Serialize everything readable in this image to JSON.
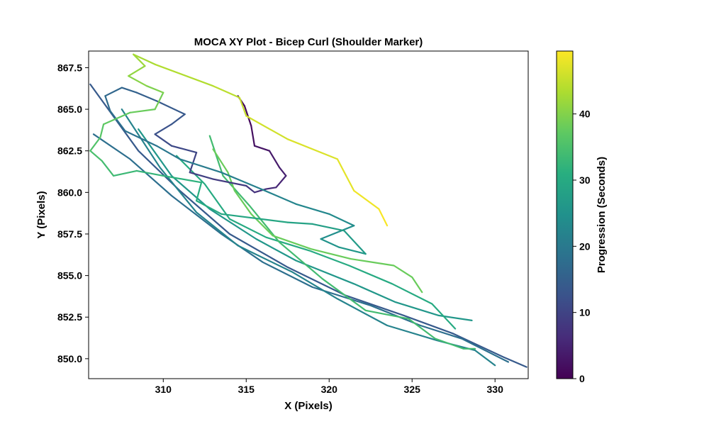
{
  "chart_data": {
    "type": "line",
    "title": "MOCA XY Plot - Bicep Curl (Shoulder Marker)",
    "xlabel": "X (Pixels)",
    "ylabel": "Y (Pixels)",
    "xlim": [
      305.5,
      332.0
    ],
    "ylim": [
      848.8,
      868.5
    ],
    "grid": false,
    "x_ticks": [
      {
        "value": 310,
        "label": "310"
      },
      {
        "value": 315,
        "label": "315"
      },
      {
        "value": 320,
        "label": "320"
      },
      {
        "value": 325,
        "label": "325"
      },
      {
        "value": 330,
        "label": "330"
      }
    ],
    "y_ticks": [
      {
        "value": 850.0,
        "label": "850.0"
      },
      {
        "value": 852.5,
        "label": "852.5"
      },
      {
        "value": 855.0,
        "label": "855.0"
      },
      {
        "value": 857.5,
        "label": "857.5"
      },
      {
        "value": 860.0,
        "label": "860.0"
      },
      {
        "value": 862.5,
        "label": "862.5"
      },
      {
        "value": 865.0,
        "label": "865.0"
      },
      {
        "value": 867.5,
        "label": "867.5"
      }
    ],
    "colorbar": {
      "label": "Progression (Seconds)",
      "range": [
        0,
        49.5
      ],
      "colormap": "viridis",
      "ticks": [
        {
          "value": 0,
          "label": "0"
        },
        {
          "value": 10,
          "label": "10"
        },
        {
          "value": 20,
          "label": "20"
        },
        {
          "value": 30,
          "label": "30"
        },
        {
          "value": 40,
          "label": "40"
        }
      ]
    },
    "trajectory": {
      "color_by": "time",
      "t": [
        0,
        0.8,
        1.6,
        2.4,
        3.2,
        4.0,
        4.8,
        5.6,
        6.4,
        7.2,
        8.0,
        8.8,
        9.6,
        10.4,
        11.2,
        12.0,
        12.8,
        13.6,
        14.4,
        15.2,
        16.0,
        16.8,
        17.6,
        18.4,
        19.2,
        20.0,
        20.8,
        21.6,
        22.4,
        23.2,
        24.0,
        24.8,
        25.6,
        26.4,
        27.2,
        28.0,
        28.8,
        29.6,
        30.4,
        31.2,
        32.0,
        32.8,
        33.6,
        34.4,
        35.2,
        36.0,
        36.8,
        37.6,
        38.4,
        39.2,
        40.0,
        40.8,
        41.6,
        42.4,
        43.2,
        44.0,
        44.8,
        45.6,
        46.4,
        47.2,
        48.0,
        48.8,
        49.5
      ],
      "x": [
        314.5,
        314.9,
        315.3,
        315.5,
        316.4,
        317.0,
        317.4,
        316.8,
        316.2,
        315.5,
        315.0,
        313.0,
        311.6,
        312.0,
        310.5,
        309.5,
        310.5,
        311.3,
        309.6,
        308.4,
        307.5,
        306.5,
        306.8,
        307.7,
        309.6,
        311.0,
        313.5,
        315.9,
        318.0,
        320.0,
        321.5,
        319.5,
        320.6,
        322.2,
        320.9,
        319.0,
        317.5,
        313.5,
        312.0,
        312.3,
        310.0,
        308.4,
        307.0,
        306.3,
        305.6,
        306.2,
        306.4,
        308.0,
        309.5,
        310.0,
        309.0,
        307.9,
        308.9,
        308.2,
        309.5,
        313.0,
        314.6,
        315.0,
        317.5,
        320.5,
        321.5,
        323.0,
        323.5
      ],
      "y": [
        865.8,
        865.2,
        864.0,
        862.8,
        862.5,
        861.5,
        861.0,
        860.3,
        860.2,
        860.0,
        860.4,
        860.8,
        861.2,
        862.4,
        862.8,
        863.5,
        864.1,
        864.7,
        865.5,
        866.0,
        866.3,
        865.8,
        864.9,
        863.7,
        862.8,
        862.0,
        861.2,
        860.2,
        859.3,
        858.7,
        858.0,
        857.2,
        856.7,
        856.3,
        857.7,
        858.1,
        858.2,
        858.7,
        859.5,
        860.6,
        861.0,
        861.3,
        861.0,
        861.9,
        862.5,
        863.3,
        864.1,
        864.8,
        865.0,
        866.0,
        866.4,
        867.0,
        867.6,
        868.3,
        867.7,
        866.4,
        865.7,
        864.6,
        863.2,
        862.0,
        860.1,
        859.0,
        858.0
      ]
    },
    "extra_segments": [
      {
        "t": 14,
        "x": [
          305.6,
          308.5,
          311.0,
          314.0,
          317.5,
          321.0,
          324.5,
          327.5,
          330.5,
          331.9
        ],
        "y": [
          866.5,
          862.5,
          860.1,
          857.5,
          855.5,
          853.8,
          852.6,
          851.5,
          850.1,
          849.5
        ]
      },
      {
        "t": 18,
        "x": [
          305.8,
          308.0,
          310.5,
          313.5,
          316.0,
          319.0,
          322.5,
          325.5,
          328.0,
          330.8
        ],
        "y": [
          863.5,
          862.0,
          859.8,
          857.5,
          855.8,
          854.3,
          853.2,
          852.0,
          851.2,
          849.8
        ]
      },
      {
        "t": 22,
        "x": [
          307.5,
          309.8,
          312.0,
          314.5,
          317.8,
          320.5,
          323.5,
          326.5,
          328.8,
          330.0
        ],
        "y": [
          865.0,
          861.5,
          858.8,
          856.8,
          855.2,
          853.6,
          852.0,
          851.1,
          850.5,
          849.6
        ]
      },
      {
        "t": 26,
        "x": [
          308.5,
          310.5,
          312.8,
          315.6,
          318.0,
          321.5,
          324.0,
          326.6,
          328.6
        ],
        "y": [
          863.8,
          861.0,
          859.0,
          857.2,
          855.9,
          854.5,
          853.4,
          852.6,
          852.3
        ]
      },
      {
        "t": 30,
        "x": [
          310.8,
          312.5,
          314.0,
          316.2,
          318.8,
          321.2,
          323.8,
          326.2,
          327.6
        ],
        "y": [
          862.2,
          860.5,
          858.4,
          857.3,
          856.5,
          855.6,
          854.5,
          853.3,
          851.8
        ]
      },
      {
        "t": 34,
        "x": [
          312.8,
          313.6,
          315.2,
          317.0,
          319.6,
          322.2,
          324.8,
          326.4,
          328.1,
          328.8
        ],
        "y": [
          863.4,
          861.0,
          859.2,
          857.0,
          854.8,
          852.9,
          852.4,
          851.2,
          850.6,
          850.6
        ]
      },
      {
        "t": 38,
        "x": [
          313.0,
          313.9,
          314.3,
          315.3,
          316.6,
          318.9,
          321.3,
          323.9,
          325.0,
          325.6
        ],
        "y": [
          862.6,
          861.2,
          860.1,
          858.7,
          857.4,
          856.6,
          856.0,
          855.6,
          854.9,
          854.0
        ]
      }
    ]
  }
}
